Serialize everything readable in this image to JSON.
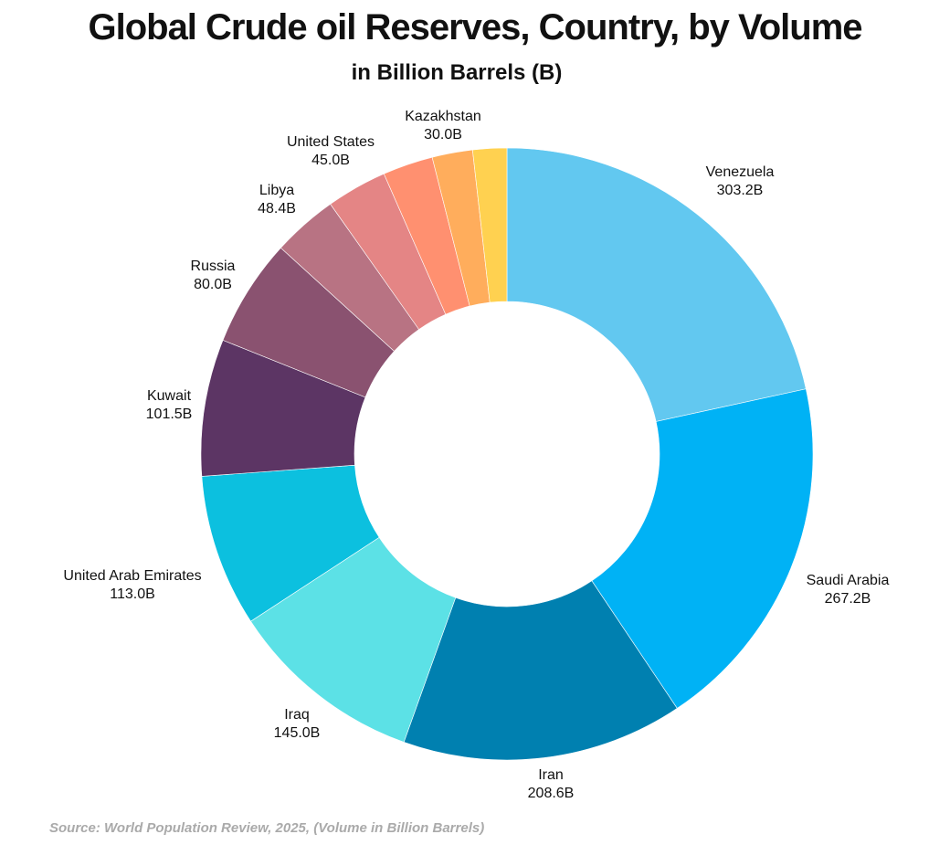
{
  "chart_data": {
    "type": "pie",
    "donut": true,
    "title": "Global Crude oil Reserves, Country, by Volume",
    "subtitle": "in Billion Barrels (B)",
    "unit": "B",
    "slices": [
      {
        "name": "Venezuela",
        "value": 303.2,
        "label": "303.2B",
        "color": "#62c8f0"
      },
      {
        "name": "Saudi Arabia",
        "value": 267.2,
        "label": "267.2B",
        "color": "#00b2f5"
      },
      {
        "name": "Iran",
        "value": 208.6,
        "label": "208.6B",
        "color": "#0080b0"
      },
      {
        "name": "Iraq",
        "value": 145.0,
        "label": "145.0B",
        "color": "#5ce1e6"
      },
      {
        "name": "United Arab Emirates",
        "value": 113.0,
        "label": "113.0B",
        "color": "#0cc0df"
      },
      {
        "name": "Kuwait",
        "value": 101.5,
        "label": "101.5B",
        "color": "#5c3564"
      },
      {
        "name": "Russia",
        "value": 80.0,
        "label": "80.0B",
        "color": "#8a5270"
      },
      {
        "name": "Libya",
        "value": 48.4,
        "label": "48.4B",
        "color": "#b87383"
      },
      {
        "name": "United States",
        "value": 45.0,
        "label": "45.0B",
        "color": "#e48585"
      },
      {
        "name": "",
        "value": 37.3,
        "label": "",
        "color": "#ff9070"
      },
      {
        "name": "Kazakhstan",
        "value": 30.0,
        "label": "30.0B",
        "color": "#ffad5c"
      },
      {
        "name": "",
        "value": 25.2,
        "label": "",
        "color": "#ffd150"
      }
    ],
    "start_angle_deg": 0,
    "direction": "clockwise",
    "legend": "none"
  },
  "source": "Source: World Population Review, 2025, (Volume in Billion Barrels)"
}
